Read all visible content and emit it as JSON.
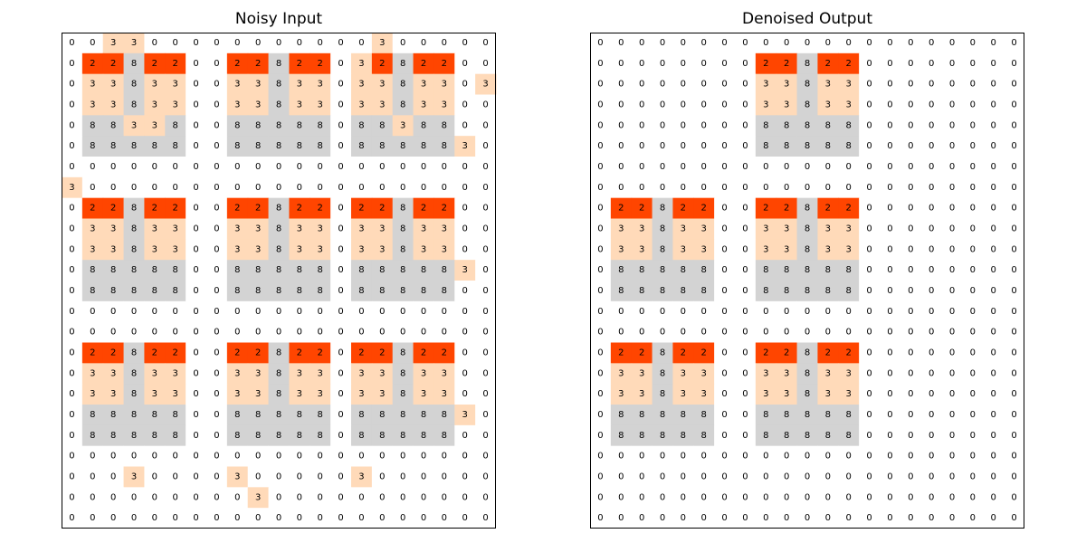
{
  "colors": {
    "0": "#ffffff",
    "2": "#ff4500",
    "3": "#ffdab9",
    "8": "#d3d3d3",
    "border": "#000000",
    "text": "#000000"
  },
  "panels": [
    {
      "title": "Noisy Input",
      "grid": [
        [
          0,
          0,
          3,
          3,
          0,
          0,
          0,
          0,
          0,
          0,
          0,
          0,
          0,
          0,
          0,
          3,
          0,
          0,
          0,
          0,
          0
        ],
        [
          0,
          2,
          2,
          8,
          2,
          2,
          0,
          0,
          2,
          2,
          8,
          2,
          2,
          0,
          3,
          2,
          8,
          2,
          2,
          0,
          0
        ],
        [
          0,
          3,
          3,
          8,
          3,
          3,
          0,
          0,
          3,
          3,
          8,
          3,
          3,
          0,
          3,
          3,
          8,
          3,
          3,
          0,
          3
        ],
        [
          0,
          3,
          3,
          8,
          3,
          3,
          0,
          0,
          3,
          3,
          8,
          3,
          3,
          0,
          3,
          3,
          8,
          3,
          3,
          0,
          0
        ],
        [
          0,
          8,
          8,
          3,
          3,
          8,
          0,
          0,
          8,
          8,
          8,
          8,
          8,
          0,
          8,
          8,
          3,
          8,
          8,
          0,
          0
        ],
        [
          0,
          8,
          8,
          8,
          8,
          8,
          0,
          0,
          8,
          8,
          8,
          8,
          8,
          0,
          8,
          8,
          8,
          8,
          8,
          3,
          0
        ],
        [
          0,
          0,
          0,
          0,
          0,
          0,
          0,
          0,
          0,
          0,
          0,
          0,
          0,
          0,
          0,
          0,
          0,
          0,
          0,
          0,
          0
        ],
        [
          3,
          0,
          0,
          0,
          0,
          0,
          0,
          0,
          0,
          0,
          0,
          0,
          0,
          0,
          0,
          0,
          0,
          0,
          0,
          0,
          0
        ],
        [
          0,
          2,
          2,
          8,
          2,
          2,
          0,
          0,
          2,
          2,
          8,
          2,
          2,
          0,
          2,
          2,
          8,
          2,
          2,
          0,
          0
        ],
        [
          0,
          3,
          3,
          8,
          3,
          3,
          0,
          0,
          3,
          3,
          8,
          3,
          3,
          0,
          3,
          3,
          8,
          3,
          3,
          0,
          0
        ],
        [
          0,
          3,
          3,
          8,
          3,
          3,
          0,
          0,
          3,
          3,
          8,
          3,
          3,
          0,
          3,
          3,
          8,
          3,
          3,
          0,
          0
        ],
        [
          0,
          8,
          8,
          8,
          8,
          8,
          0,
          0,
          8,
          8,
          8,
          8,
          8,
          0,
          8,
          8,
          8,
          8,
          8,
          3,
          0
        ],
        [
          0,
          8,
          8,
          8,
          8,
          8,
          0,
          0,
          8,
          8,
          8,
          8,
          8,
          0,
          8,
          8,
          8,
          8,
          8,
          0,
          0
        ],
        [
          0,
          0,
          0,
          0,
          0,
          0,
          0,
          0,
          0,
          0,
          0,
          0,
          0,
          0,
          0,
          0,
          0,
          0,
          0,
          0,
          0
        ],
        [
          0,
          0,
          0,
          0,
          0,
          0,
          0,
          0,
          0,
          0,
          0,
          0,
          0,
          0,
          0,
          0,
          0,
          0,
          0,
          0,
          0
        ],
        [
          0,
          2,
          2,
          8,
          2,
          2,
          0,
          0,
          2,
          2,
          8,
          2,
          2,
          0,
          2,
          2,
          8,
          2,
          2,
          0,
          0
        ],
        [
          0,
          3,
          3,
          8,
          3,
          3,
          0,
          0,
          3,
          3,
          8,
          3,
          3,
          0,
          3,
          3,
          8,
          3,
          3,
          0,
          0
        ],
        [
          0,
          3,
          3,
          8,
          3,
          3,
          0,
          0,
          3,
          3,
          8,
          3,
          3,
          0,
          3,
          3,
          8,
          3,
          3,
          0,
          0
        ],
        [
          0,
          8,
          8,
          8,
          8,
          8,
          0,
          0,
          8,
          8,
          8,
          8,
          8,
          0,
          8,
          8,
          8,
          8,
          8,
          3,
          0
        ],
        [
          0,
          8,
          8,
          8,
          8,
          8,
          0,
          0,
          8,
          8,
          8,
          8,
          8,
          0,
          8,
          8,
          8,
          8,
          8,
          0,
          0
        ],
        [
          0,
          0,
          0,
          0,
          0,
          0,
          0,
          0,
          0,
          0,
          0,
          0,
          0,
          0,
          0,
          0,
          0,
          0,
          0,
          0,
          0
        ],
        [
          0,
          0,
          0,
          3,
          0,
          0,
          0,
          0,
          3,
          0,
          0,
          0,
          0,
          0,
          3,
          0,
          0,
          0,
          0,
          0,
          0
        ],
        [
          0,
          0,
          0,
          0,
          0,
          0,
          0,
          0,
          0,
          3,
          0,
          0,
          0,
          0,
          0,
          0,
          0,
          0,
          0,
          0,
          0
        ],
        [
          0,
          0,
          0,
          0,
          0,
          0,
          0,
          0,
          0,
          0,
          0,
          0,
          0,
          0,
          0,
          0,
          0,
          0,
          0,
          0,
          0
        ]
      ]
    },
    {
      "title": "Denoised Output",
      "grid": [
        [
          0,
          0,
          0,
          0,
          0,
          0,
          0,
          0,
          0,
          0,
          0,
          0,
          0,
          0,
          0,
          0,
          0,
          0,
          0,
          0,
          0
        ],
        [
          0,
          0,
          0,
          0,
          0,
          0,
          0,
          0,
          2,
          2,
          8,
          2,
          2,
          0,
          0,
          0,
          0,
          0,
          0,
          0,
          0
        ],
        [
          0,
          0,
          0,
          0,
          0,
          0,
          0,
          0,
          3,
          3,
          8,
          3,
          3,
          0,
          0,
          0,
          0,
          0,
          0,
          0,
          0
        ],
        [
          0,
          0,
          0,
          0,
          0,
          0,
          0,
          0,
          3,
          3,
          8,
          3,
          3,
          0,
          0,
          0,
          0,
          0,
          0,
          0,
          0
        ],
        [
          0,
          0,
          0,
          0,
          0,
          0,
          0,
          0,
          8,
          8,
          8,
          8,
          8,
          0,
          0,
          0,
          0,
          0,
          0,
          0,
          0
        ],
        [
          0,
          0,
          0,
          0,
          0,
          0,
          0,
          0,
          8,
          8,
          8,
          8,
          8,
          0,
          0,
          0,
          0,
          0,
          0,
          0,
          0
        ],
        [
          0,
          0,
          0,
          0,
          0,
          0,
          0,
          0,
          0,
          0,
          0,
          0,
          0,
          0,
          0,
          0,
          0,
          0,
          0,
          0,
          0
        ],
        [
          0,
          0,
          0,
          0,
          0,
          0,
          0,
          0,
          0,
          0,
          0,
          0,
          0,
          0,
          0,
          0,
          0,
          0,
          0,
          0,
          0
        ],
        [
          0,
          2,
          2,
          8,
          2,
          2,
          0,
          0,
          2,
          2,
          8,
          2,
          2,
          0,
          0,
          0,
          0,
          0,
          0,
          0,
          0
        ],
        [
          0,
          3,
          3,
          8,
          3,
          3,
          0,
          0,
          3,
          3,
          8,
          3,
          3,
          0,
          0,
          0,
          0,
          0,
          0,
          0,
          0
        ],
        [
          0,
          3,
          3,
          8,
          3,
          3,
          0,
          0,
          3,
          3,
          8,
          3,
          3,
          0,
          0,
          0,
          0,
          0,
          0,
          0,
          0
        ],
        [
          0,
          8,
          8,
          8,
          8,
          8,
          0,
          0,
          8,
          8,
          8,
          8,
          8,
          0,
          0,
          0,
          0,
          0,
          0,
          0,
          0
        ],
        [
          0,
          8,
          8,
          8,
          8,
          8,
          0,
          0,
          8,
          8,
          8,
          8,
          8,
          0,
          0,
          0,
          0,
          0,
          0,
          0,
          0
        ],
        [
          0,
          0,
          0,
          0,
          0,
          0,
          0,
          0,
          0,
          0,
          0,
          0,
          0,
          0,
          0,
          0,
          0,
          0,
          0,
          0,
          0
        ],
        [
          0,
          0,
          0,
          0,
          0,
          0,
          0,
          0,
          0,
          0,
          0,
          0,
          0,
          0,
          0,
          0,
          0,
          0,
          0,
          0,
          0
        ],
        [
          0,
          2,
          2,
          8,
          2,
          2,
          0,
          0,
          2,
          2,
          8,
          2,
          2,
          0,
          0,
          0,
          0,
          0,
          0,
          0,
          0
        ],
        [
          0,
          3,
          3,
          8,
          3,
          3,
          0,
          0,
          3,
          3,
          8,
          3,
          3,
          0,
          0,
          0,
          0,
          0,
          0,
          0,
          0
        ],
        [
          0,
          3,
          3,
          8,
          3,
          3,
          0,
          0,
          3,
          3,
          8,
          3,
          3,
          0,
          0,
          0,
          0,
          0,
          0,
          0,
          0
        ],
        [
          0,
          8,
          8,
          8,
          8,
          8,
          0,
          0,
          8,
          8,
          8,
          8,
          8,
          0,
          0,
          0,
          0,
          0,
          0,
          0,
          0
        ],
        [
          0,
          8,
          8,
          8,
          8,
          8,
          0,
          0,
          8,
          8,
          8,
          8,
          8,
          0,
          0,
          0,
          0,
          0,
          0,
          0,
          0
        ],
        [
          0,
          0,
          0,
          0,
          0,
          0,
          0,
          0,
          0,
          0,
          0,
          0,
          0,
          0,
          0,
          0,
          0,
          0,
          0,
          0,
          0
        ],
        [
          0,
          0,
          0,
          0,
          0,
          0,
          0,
          0,
          0,
          0,
          0,
          0,
          0,
          0,
          0,
          0,
          0,
          0,
          0,
          0,
          0
        ],
        [
          0,
          0,
          0,
          0,
          0,
          0,
          0,
          0,
          0,
          0,
          0,
          0,
          0,
          0,
          0,
          0,
          0,
          0,
          0,
          0,
          0
        ],
        [
          0,
          0,
          0,
          0,
          0,
          0,
          0,
          0,
          0,
          0,
          0,
          0,
          0,
          0,
          0,
          0,
          0,
          0,
          0,
          0,
          0
        ]
      ]
    }
  ]
}
